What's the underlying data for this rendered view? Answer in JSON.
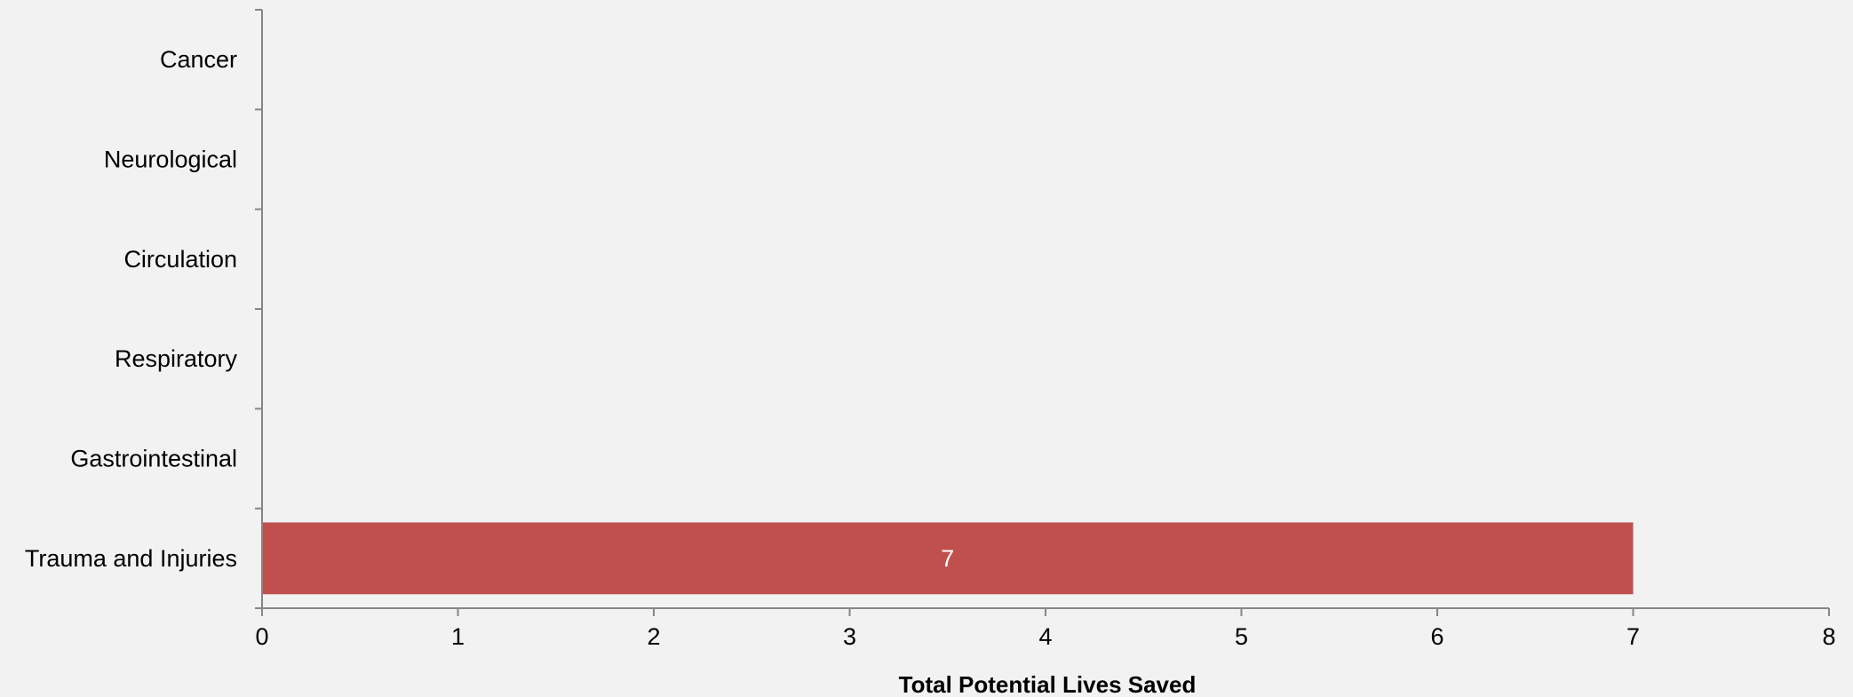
{
  "chart_data": {
    "type": "bar",
    "orientation": "horizontal",
    "categories": [
      "Cancer",
      "Neurological",
      "Circulation",
      "Respiratory",
      "Gastrointestinal",
      "Trauma and Injuries"
    ],
    "values": [
      0,
      0,
      0,
      0,
      0,
      7
    ],
    "data_labels": [
      "",
      "",
      "",
      "",
      "",
      "7"
    ],
    "xlabel": "Total Potential Lives Saved",
    "ylabel": "",
    "xlim": [
      0,
      8
    ],
    "xticks": [
      "0",
      "1",
      "2",
      "3",
      "4",
      "5",
      "6",
      "7",
      "8"
    ],
    "grid": false,
    "legend": "none",
    "colors": {
      "bar": "#c0504d",
      "background": "#f2f2f2",
      "axis": "#868686",
      "data_label": "#ffffff"
    }
  }
}
